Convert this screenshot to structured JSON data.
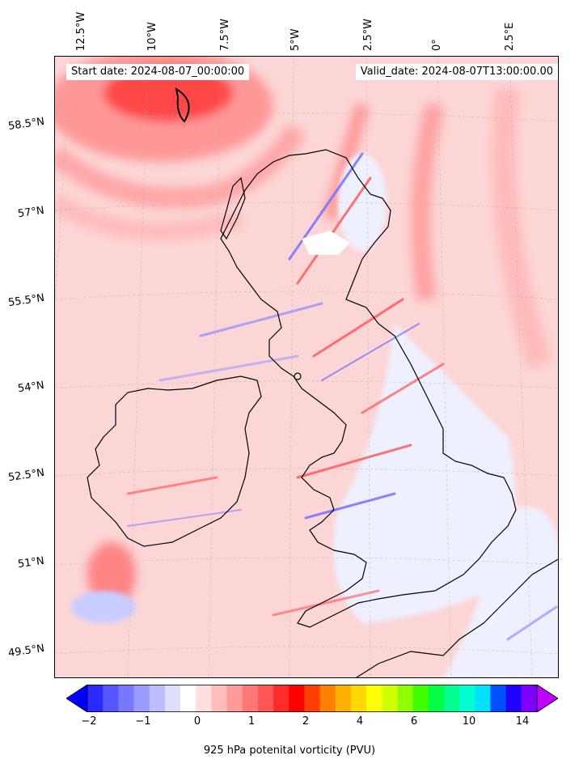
{
  "map": {
    "start_date": "Start date: 2024-08-07_00:00:00",
    "valid_date": "Valid_date: 2024-08-07T13:00:00.00",
    "longitude_labels": [
      "12.5°W",
      "10°W",
      "7.5°W",
      "5°W",
      "2.5°W",
      "0°",
      "2.5°E"
    ],
    "latitude_labels": [
      "58.5°N",
      "57°N",
      "55.5°N",
      "54°N",
      "52.5°N",
      "51°N",
      "49.5°N"
    ],
    "colors": {
      "background_field": "#fde3e3",
      "low_field": "#eef0ff",
      "coastline": "#000000"
    }
  },
  "colorbar": {
    "label": "925 hPa potenital vorticity (PVU)",
    "tick_labels": [
      "−2",
      "−1",
      "0",
      "1",
      "2",
      "4",
      "6",
      "10",
      "14"
    ],
    "colors": [
      "#0000ff",
      "#2a2aff",
      "#5555ff",
      "#7777ff",
      "#9a9aff",
      "#bcbcff",
      "#dedeff",
      "#ffffff",
      "#ffdede",
      "#ffbcbc",
      "#ff9a9a",
      "#ff7777",
      "#ff5555",
      "#ff2a2a",
      "#ff0000",
      "#ff4000",
      "#ff8000",
      "#ffb000",
      "#ffd800",
      "#ffff00",
      "#d0ff00",
      "#90ff00",
      "#40ff00",
      "#00ff40",
      "#00ff90",
      "#00ffd0",
      "#00e0ff",
      "#0050ff",
      "#2000ff",
      "#8000ff",
      "#c000ff"
    ]
  }
}
